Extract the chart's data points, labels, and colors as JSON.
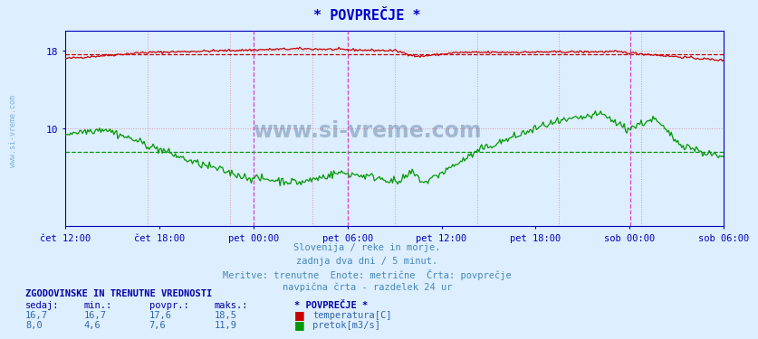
{
  "title": "* POVPREČJE *",
  "title_color": "#0000cc",
  "bg_color": "#ddeeff",
  "plot_bg_color": "#ddeeff",
  "red_avg": 17.6,
  "green_avg": 7.6,
  "red_max": 18.5,
  "green_max": 11.9,
  "red_min": 16.7,
  "green_min": 4.6,
  "red_current": 16.7,
  "green_current": 8.0,
  "ylim": [
    0,
    20
  ],
  "yticks": [
    10,
    18
  ],
  "n_points": 504,
  "xlabel_color": "#000080",
  "line_color_red": "#cc0000",
  "line_color_green": "#009900",
  "dash_color_red": "#cc0000",
  "dash_color_green": "#009900",
  "vert_line_color": "#cc44cc",
  "grid_color": "#dd9999",
  "axis_color": "#0000bb",
  "text_color": "#4488bb",
  "footer_lines": [
    "Slovenija / reke in morje.",
    "zadnja dva dni / 5 minut.",
    "Meritve: trenutne  Enote: metrične  Črta: povprečje",
    "navpična črta - razdelek 24 ur"
  ],
  "table_header": "ZGODOVINSKE IN TRENUTNE VREDNOSTI",
  "col_headers": [
    "sedaj:",
    "min.:",
    "povpr.:",
    "maks.:",
    "* POVPREČJE *"
  ],
  "row1": [
    "16,7",
    "16,7",
    "17,6",
    "18,5",
    "temperatura[C]"
  ],
  "row2": [
    "8,0",
    "4,6",
    "7,6",
    "11,9",
    "pretok[m3/s]"
  ],
  "xticklabels": [
    "čet 12:00",
    "čet 18:00",
    "pet 00:00",
    "pet 06:00",
    "pet 12:00",
    "pet 18:00",
    "sob 00:00",
    "sob 06:00"
  ]
}
